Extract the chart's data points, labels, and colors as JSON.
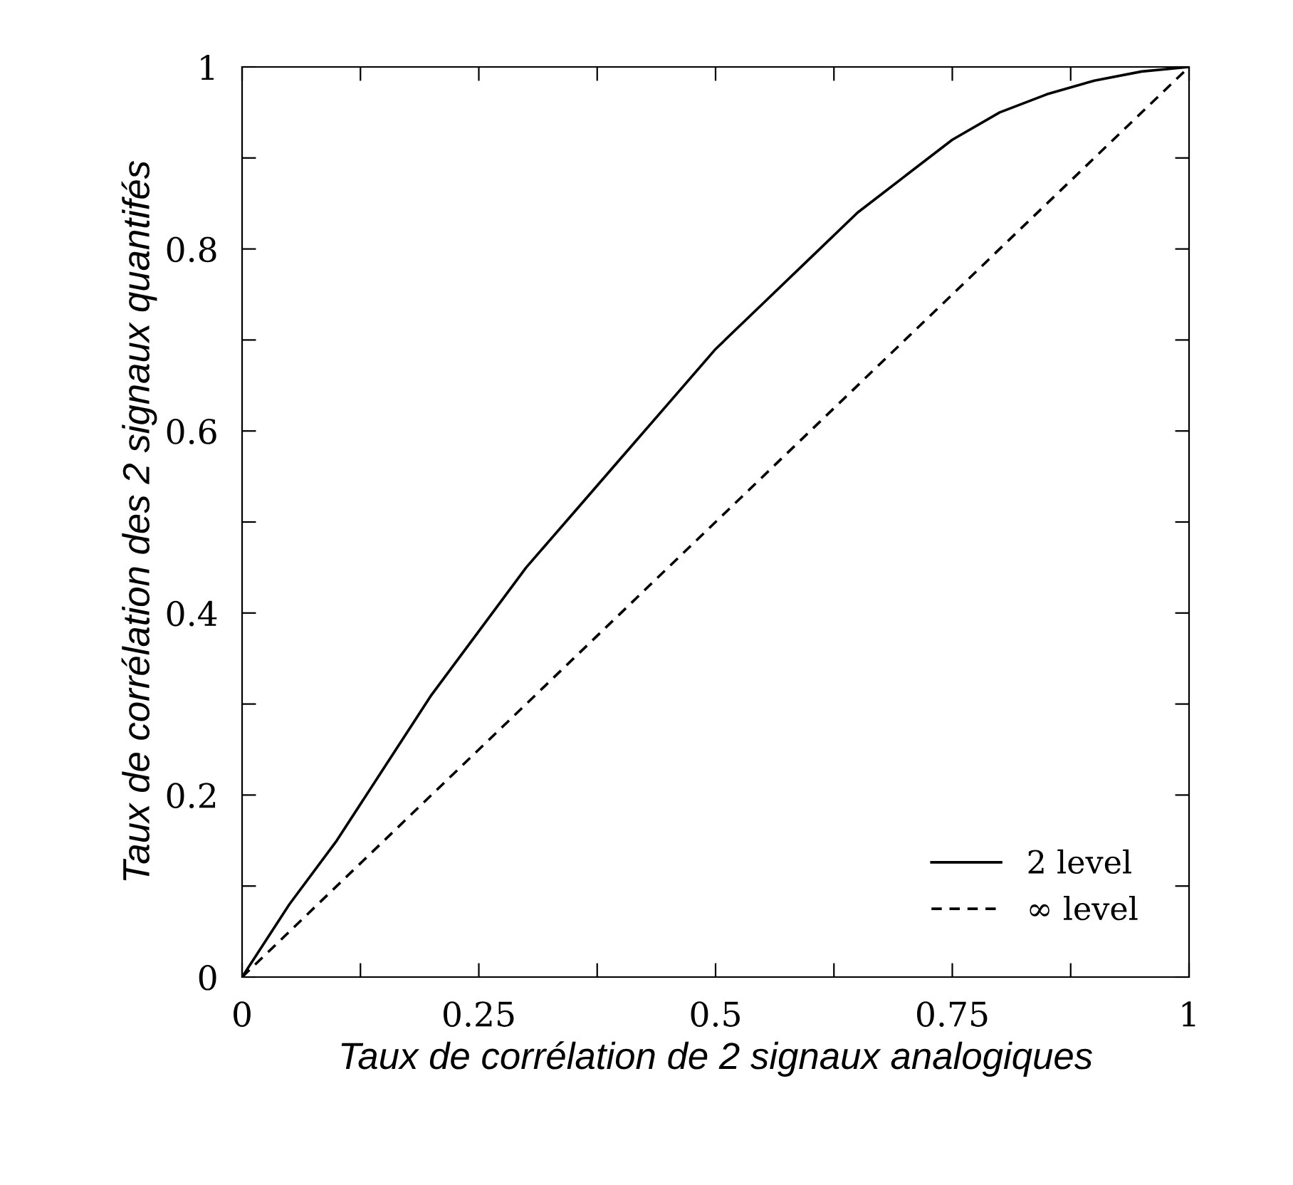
{
  "chart_data": {
    "type": "line",
    "xlabel": "Taux de corrélation de 2 signaux analogiques",
    "ylabel": "Taux de corrélation des 2 signaux quantifés",
    "xlim": [
      0,
      1
    ],
    "ylim": [
      0,
      1
    ],
    "xticks": [
      0,
      {
        "value": 0.125,
        "label": null
      },
      0.25,
      {
        "value": 0.375,
        "label": null
      },
      0.5,
      {
        "value": 0.625,
        "label": null
      },
      0.75,
      {
        "value": 0.875,
        "label": null
      },
      1
    ],
    "yticks": [
      0,
      {
        "value": 0.1,
        "label": null
      },
      0.2,
      {
        "value": 0.3,
        "label": null
      },
      0.4,
      {
        "value": 0.5,
        "label": null
      },
      0.6,
      {
        "value": 0.7,
        "label": null
      },
      0.8,
      {
        "value": 0.9,
        "label": null
      },
      1
    ],
    "grid": false,
    "legend": "bottom right",
    "series": [
      {
        "name": "2 level",
        "color": "#000000",
        "line_style": "solid",
        "x": [
          0,
          0.05,
          0.1,
          0.15,
          0.2,
          0.25,
          0.3,
          0.35,
          0.4,
          0.45,
          0.5,
          0.55,
          0.6,
          0.65,
          0.7,
          0.75,
          0.8,
          0.85,
          0.9,
          0.95,
          1
        ],
        "values": [
          0,
          0.08,
          0.15,
          0.23,
          0.31,
          0.38,
          0.45,
          0.51,
          0.57,
          0.63,
          0.69,
          0.74,
          0.79,
          0.84,
          0.88,
          0.92,
          0.95,
          0.97,
          0.985,
          0.995,
          1
        ]
      },
      {
        "name": "∞ level",
        "color": "#000000",
        "line_style": "dashed",
        "x": [
          0,
          1
        ],
        "values": [
          0,
          1
        ]
      }
    ]
  }
}
